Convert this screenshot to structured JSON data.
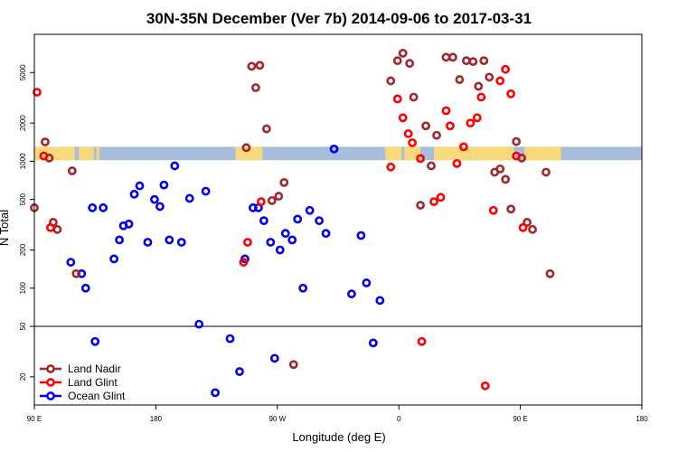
{
  "chart_data": {
    "type": "scatter",
    "title": "30N-35N December (Ver 7b)   2014-09-06 to 2017-03-31",
    "xlabel": "Longitude (deg E)",
    "ylabel": "N Total",
    "x_scale": "longitude",
    "x_range": [
      90,
      450
    ],
    "x_ticks": [
      {
        "value": 90,
        "label": "90 E"
      },
      {
        "value": 180,
        "label": "180"
      },
      {
        "value": 270,
        "label": "90 W"
      },
      {
        "value": 360,
        "label": "0"
      },
      {
        "value": 450,
        "label": "90 E"
      },
      {
        "value": 540,
        "label": "180"
      }
    ],
    "x_lim": [
      90,
      540
    ],
    "y_scale": "log",
    "y_lim": [
      12,
      10000
    ],
    "y_ticks": [
      20,
      50,
      100,
      200,
      500,
      1000,
      2000,
      5000
    ],
    "reference_line": 50,
    "grid": false,
    "legend_position": "bottom-left",
    "land_mask_band": {
      "y_range": [
        1020,
        1300
      ],
      "ocean_color": "#a7bddc",
      "land_color": "#fad97a",
      "land_spans": [
        [
          90,
          120
        ],
        [
          123,
          134
        ],
        [
          136,
          138
        ],
        [
          239,
          259
        ],
        [
          350,
          362
        ],
        [
          364,
          376
        ],
        [
          386,
          445
        ],
        [
          453,
          480
        ]
      ]
    },
    "series": [
      {
        "name": "Land Nadir",
        "color": "#a3262a",
        "points": [
          [
            90,
            430
          ],
          [
            98,
            1420
          ],
          [
            101,
            1060
          ],
          [
            104,
            330
          ],
          [
            107,
            290
          ],
          [
            118,
            840
          ],
          [
            121,
            130
          ],
          [
            247,
            1280
          ],
          [
            251,
            5600
          ],
          [
            254,
            3800
          ],
          [
            257,
            5700
          ],
          [
            262,
            1800
          ],
          [
            266,
            490
          ],
          [
            271,
            530
          ],
          [
            275,
            680
          ],
          [
            282,
            25
          ],
          [
            354,
            4300
          ],
          [
            359,
            6200
          ],
          [
            363,
            7100
          ],
          [
            368,
            5900
          ],
          [
            371,
            3200
          ],
          [
            376,
            450
          ],
          [
            380,
            1900
          ],
          [
            384,
            920
          ],
          [
            388,
            1600
          ],
          [
            395,
            6600
          ],
          [
            400,
            6600
          ],
          [
            405,
            4400
          ],
          [
            410,
            6200
          ],
          [
            415,
            6100
          ],
          [
            419,
            3900
          ],
          [
            423,
            6200
          ],
          [
            427,
            4600
          ],
          [
            431,
            820
          ],
          [
            435,
            870
          ],
          [
            439,
            720
          ],
          [
            443,
            420
          ],
          [
            447,
            1430
          ],
          [
            451,
            1060
          ],
          [
            455,
            330
          ],
          [
            459,
            290
          ],
          [
            469,
            820
          ],
          [
            472,
            130
          ]
        ]
      },
      {
        "name": "Land Glint",
        "color": "#ff0000",
        "points": [
          [
            92,
            3500
          ],
          [
            97,
            1100
          ],
          [
            102,
            300
          ],
          [
            245,
            160
          ],
          [
            248,
            230
          ],
          [
            258,
            480
          ],
          [
            354,
            900
          ],
          [
            359,
            3100
          ],
          [
            363,
            2200
          ],
          [
            367,
            1650
          ],
          [
            370,
            1400
          ],
          [
            376,
            1050
          ],
          [
            377,
            38
          ],
          [
            386,
            480
          ],
          [
            391,
            520
          ],
          [
            395,
            2500
          ],
          [
            398,
            1900
          ],
          [
            403,
            960
          ],
          [
            408,
            1300
          ],
          [
            413,
            2000
          ],
          [
            418,
            2200
          ],
          [
            421,
            3200
          ],
          [
            424,
            17
          ],
          [
            430,
            410
          ],
          [
            435,
            4300
          ],
          [
            439,
            5300
          ],
          [
            443,
            3400
          ],
          [
            447,
            1100
          ],
          [
            452,
            300
          ]
        ]
      },
      {
        "name": "Ocean Glint",
        "color": "#0000ee",
        "points": [
          [
            133,
            430
          ],
          [
            135,
            38
          ],
          [
            141,
            430
          ],
          [
            149,
            170
          ],
          [
            153,
            240
          ],
          [
            156,
            310
          ],
          [
            160,
            320
          ],
          [
            164,
            550
          ],
          [
            168,
            640
          ],
          [
            174,
            230
          ],
          [
            179,
            500
          ],
          [
            183,
            440
          ],
          [
            186,
            650
          ],
          [
            190,
            240
          ],
          [
            194,
            920
          ],
          [
            199,
            230
          ],
          [
            205,
            510
          ],
          [
            212,
            52
          ],
          [
            217,
            580
          ],
          [
            224,
            15
          ],
          [
            235,
            40
          ],
          [
            242,
            22
          ],
          [
            246,
            170
          ],
          [
            252,
            430
          ],
          [
            256,
            430
          ],
          [
            260,
            340
          ],
          [
            265,
            230
          ],
          [
            268,
            28
          ],
          [
            272,
            200
          ],
          [
            276,
            270
          ],
          [
            281,
            240
          ],
          [
            285,
            350
          ],
          [
            289,
            100
          ],
          [
            294,
            410
          ],
          [
            301,
            340
          ],
          [
            306,
            270
          ],
          [
            312,
            1250
          ],
          [
            325,
            90
          ],
          [
            332,
            260
          ],
          [
            336,
            110
          ],
          [
            341,
            37
          ],
          [
            346,
            80
          ],
          [
            125,
            130
          ],
          [
            128,
            100
          ],
          [
            117,
            160
          ]
        ]
      }
    ]
  }
}
